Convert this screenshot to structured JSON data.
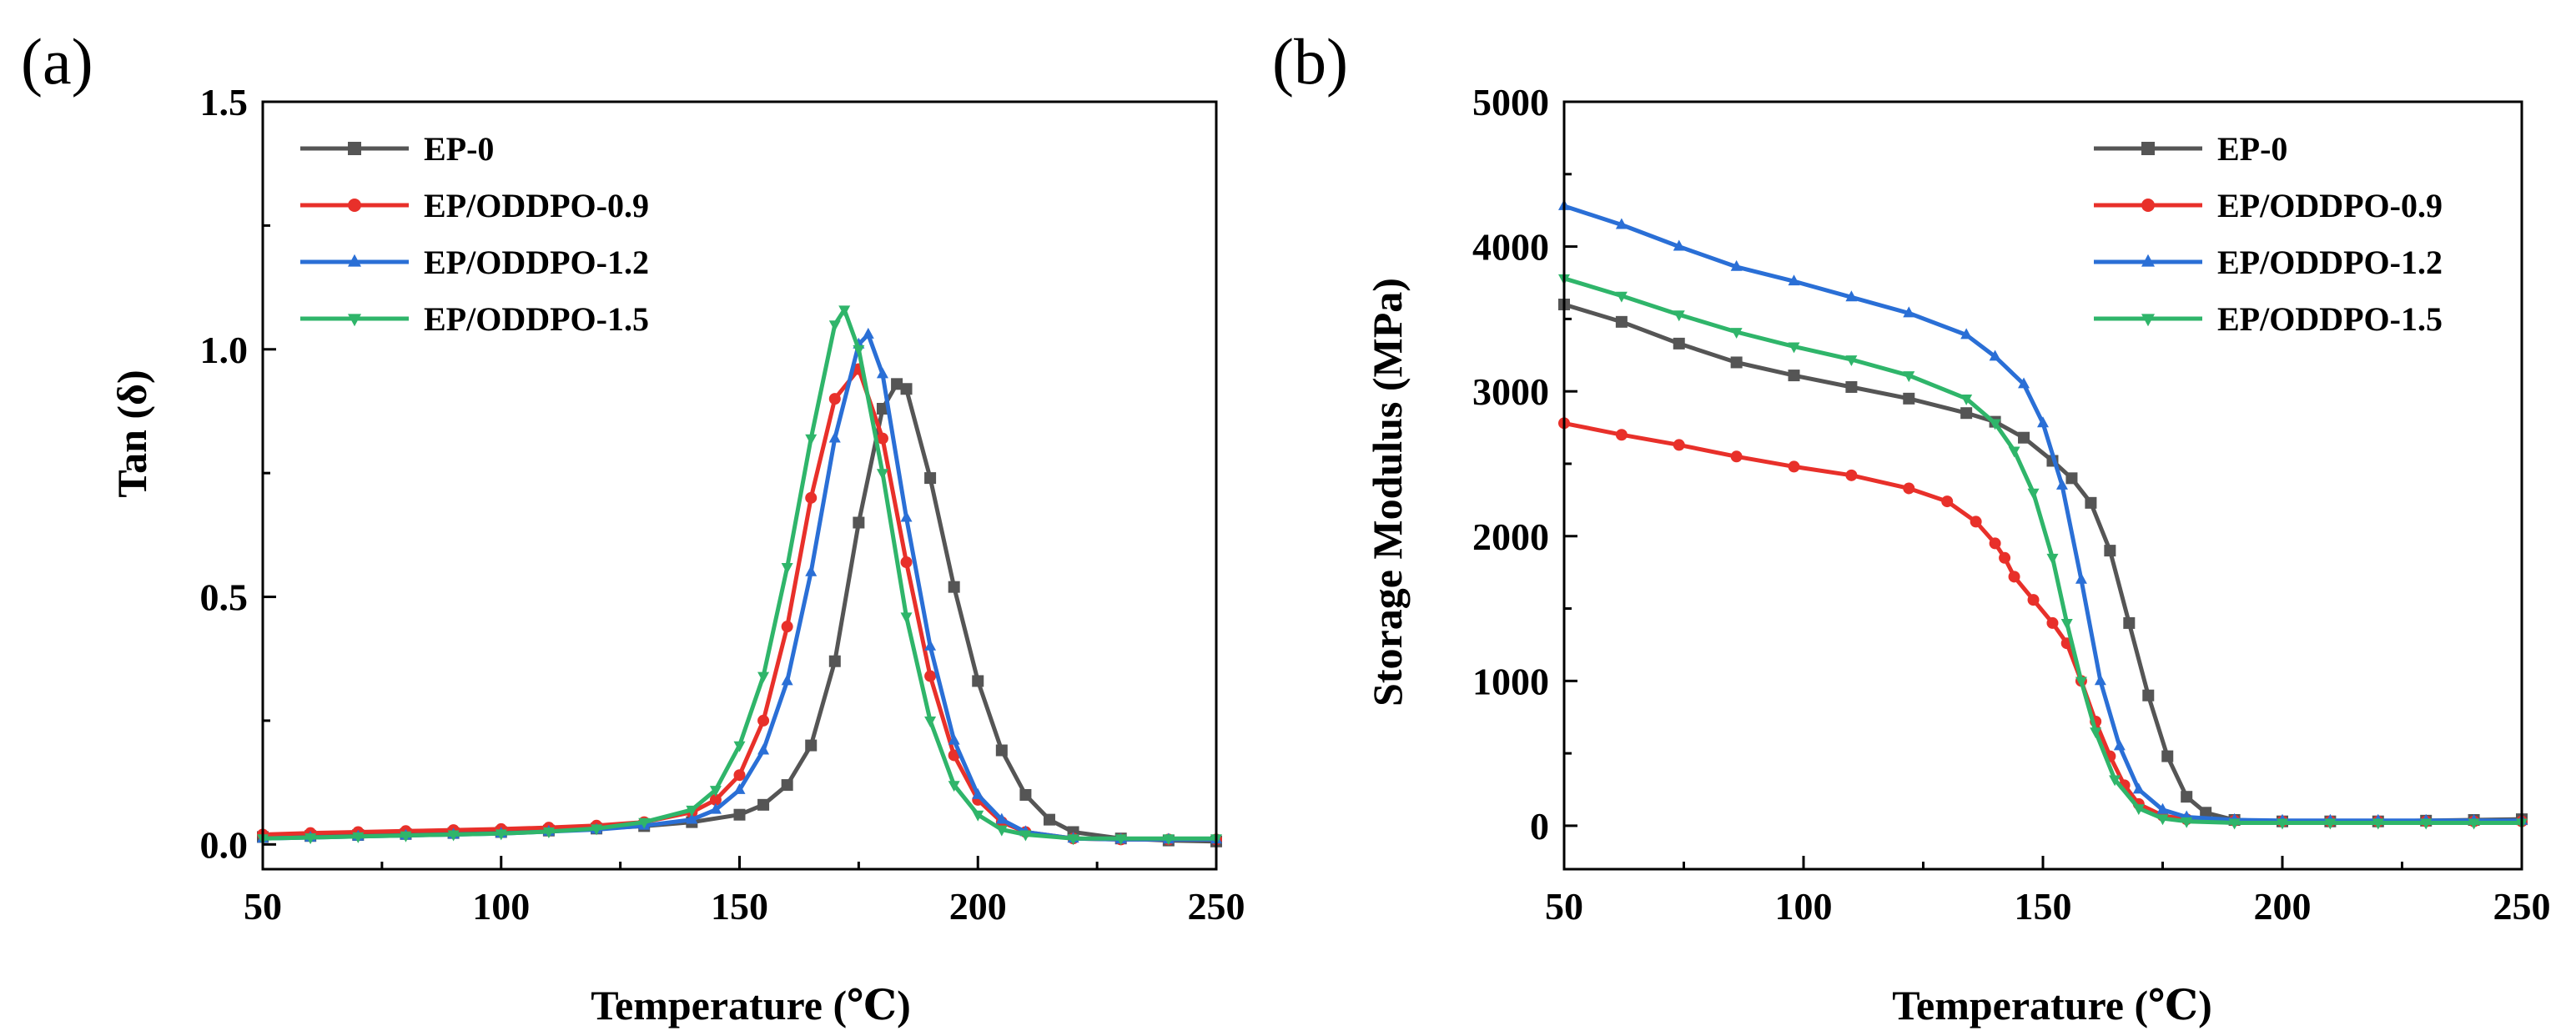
{
  "chart_data": [
    {
      "panel_label": "(a)",
      "type": "line",
      "xlabel": "Temperature (℃)",
      "ylabel": "Tan (δ)",
      "xlim": [
        50,
        250
      ],
      "ylim": [
        -0.05,
        1.5
      ],
      "xticks": [
        50,
        100,
        150,
        200,
        250
      ],
      "yticks": [
        0.0,
        0.5,
        1.0,
        1.5
      ],
      "ytick_labels": [
        "0.0",
        "0.5",
        "1.0",
        "1.5"
      ],
      "legend_position": "top-left",
      "series": [
        {
          "name": "EP-0",
          "color": "#555555",
          "marker": "square",
          "x": [
            50,
            60,
            70,
            80,
            90,
            100,
            110,
            120,
            130,
            140,
            150,
            155,
            160,
            165,
            170,
            175,
            180,
            183,
            185,
            190,
            195,
            200,
            205,
            210,
            215,
            220,
            230,
            240,
            250
          ],
          "y": [
            0.015,
            0.017,
            0.019,
            0.021,
            0.023,
            0.025,
            0.028,
            0.032,
            0.037,
            0.045,
            0.06,
            0.08,
            0.12,
            0.2,
            0.37,
            0.65,
            0.88,
            0.93,
            0.92,
            0.74,
            0.52,
            0.33,
            0.19,
            0.1,
            0.05,
            0.025,
            0.012,
            0.008,
            0.006
          ]
        },
        {
          "name": "EP/ODDPO-0.9",
          "color": "#e8302a",
          "marker": "circle",
          "x": [
            50,
            60,
            70,
            80,
            90,
            100,
            110,
            120,
            130,
            140,
            145,
            150,
            155,
            160,
            165,
            170,
            175,
            180,
            185,
            190,
            195,
            200,
            205,
            210,
            220,
            230,
            240,
            250
          ],
          "y": [
            0.02,
            0.023,
            0.025,
            0.027,
            0.029,
            0.031,
            0.034,
            0.038,
            0.045,
            0.065,
            0.09,
            0.14,
            0.25,
            0.44,
            0.7,
            0.9,
            0.96,
            0.82,
            0.57,
            0.34,
            0.18,
            0.09,
            0.045,
            0.025,
            0.012,
            0.01,
            0.01,
            0.01
          ]
        },
        {
          "name": "EP/ODDPO-1.2",
          "color": "#2a6fd6",
          "marker": "triangle-up",
          "x": [
            50,
            60,
            70,
            80,
            90,
            100,
            110,
            120,
            130,
            140,
            145,
            150,
            155,
            160,
            165,
            170,
            175,
            177,
            180,
            185,
            190,
            195,
            200,
            205,
            210,
            220,
            230,
            240,
            250
          ],
          "y": [
            0.012,
            0.014,
            0.016,
            0.018,
            0.02,
            0.022,
            0.026,
            0.03,
            0.038,
            0.05,
            0.07,
            0.11,
            0.19,
            0.33,
            0.55,
            0.82,
            1.01,
            1.03,
            0.95,
            0.66,
            0.4,
            0.21,
            0.1,
            0.05,
            0.025,
            0.012,
            0.01,
            0.01,
            0.01
          ]
        },
        {
          "name": "EP/ODDPO-1.5",
          "color": "#2fb56a",
          "marker": "triangle-down",
          "x": [
            50,
            60,
            70,
            80,
            90,
            100,
            110,
            120,
            130,
            140,
            145,
            150,
            155,
            160,
            165,
            170,
            172,
            175,
            180,
            185,
            190,
            195,
            200,
            205,
            210,
            220,
            230,
            240,
            250
          ],
          "y": [
            0.012,
            0.014,
            0.016,
            0.018,
            0.02,
            0.022,
            0.026,
            0.032,
            0.045,
            0.07,
            0.11,
            0.2,
            0.34,
            0.56,
            0.82,
            1.05,
            1.08,
            1.0,
            0.75,
            0.46,
            0.25,
            0.12,
            0.06,
            0.03,
            0.02,
            0.012,
            0.012,
            0.012,
            0.012
          ]
        }
      ]
    },
    {
      "panel_label": "(b)",
      "type": "line",
      "xlabel": "Temperature (℃)",
      "ylabel": "Storage Modulus (MPa)",
      "xlim": [
        50,
        250
      ],
      "ylim": [
        -300,
        5000
      ],
      "xticks": [
        50,
        100,
        150,
        200,
        250
      ],
      "yticks": [
        0,
        1000,
        2000,
        3000,
        4000,
        5000
      ],
      "ytick_labels": [
        "0",
        "1000",
        "2000",
        "3000",
        "4000",
        "5000"
      ],
      "legend_position": "top-right",
      "series": [
        {
          "name": "EP-0",
          "color": "#555555",
          "marker": "square",
          "x": [
            50,
            62,
            74,
            86,
            98,
            110,
            122,
            134,
            140,
            146,
            152,
            156,
            160,
            164,
            168,
            172,
            176,
            180,
            184,
            190,
            200,
            210,
            220,
            230,
            240,
            250
          ],
          "y": [
            3600,
            3480,
            3330,
            3200,
            3110,
            3030,
            2950,
            2850,
            2790,
            2680,
            2520,
            2400,
            2230,
            1900,
            1400,
            900,
            480,
            200,
            90,
            40,
            30,
            30,
            30,
            35,
            40,
            45
          ]
        },
        {
          "name": "EP/ODDPO-0.9",
          "color": "#e8302a",
          "marker": "circle",
          "x": [
            50,
            62,
            74,
            86,
            98,
            110,
            122,
            130,
            136,
            140,
            142,
            144,
            148,
            152,
            155,
            158,
            161,
            164,
            167,
            170,
            175,
            180,
            190,
            200,
            210,
            220,
            230,
            240,
            250
          ],
          "y": [
            2780,
            2700,
            2630,
            2550,
            2480,
            2420,
            2330,
            2240,
            2100,
            1950,
            1850,
            1720,
            1560,
            1400,
            1260,
            1000,
            720,
            480,
            280,
            150,
            70,
            45,
            35,
            30,
            30,
            30,
            30,
            30,
            30
          ]
        },
        {
          "name": "EP/ODDPO-1.2",
          "color": "#2a6fd6",
          "marker": "triangle-up",
          "x": [
            50,
            62,
            74,
            86,
            98,
            110,
            122,
            134,
            140,
            146,
            150,
            154,
            158,
            162,
            166,
            170,
            175,
            180,
            190,
            200,
            210,
            220,
            230,
            240,
            250
          ],
          "y": [
            4280,
            4150,
            4000,
            3860,
            3760,
            3650,
            3540,
            3390,
            3240,
            3050,
            2780,
            2350,
            1700,
            1000,
            550,
            250,
            110,
            60,
            40,
            35,
            35,
            35,
            35,
            35,
            35
          ]
        },
        {
          "name": "EP/ODDPO-1.5",
          "color": "#2fb56a",
          "marker": "triangle-down",
          "x": [
            50,
            62,
            74,
            86,
            98,
            110,
            122,
            134,
            140,
            144,
            148,
            152,
            155,
            158,
            161,
            165,
            170,
            175,
            180,
            190,
            200,
            210,
            220,
            230,
            240,
            250
          ],
          "y": [
            3780,
            3660,
            3530,
            3410,
            3310,
            3220,
            3110,
            2950,
            2780,
            2590,
            2300,
            1850,
            1400,
            1000,
            650,
            320,
            120,
            50,
            30,
            20,
            20,
            20,
            20,
            20,
            20,
            20
          ]
        }
      ]
    }
  ]
}
